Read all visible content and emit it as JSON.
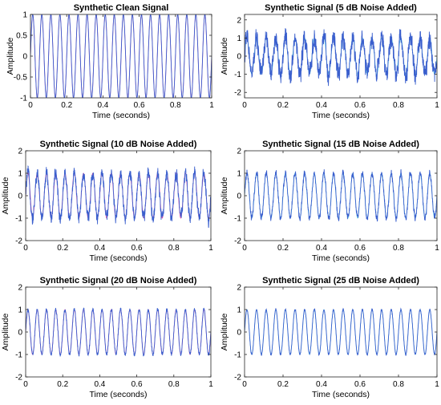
{
  "chart_data": [
    {
      "type": "line",
      "title": "Synthetic Clean Signal",
      "xlabel": "Time (seconds)",
      "ylabel": "Amplitude",
      "xlim": [
        0,
        1
      ],
      "ylim": [
        -1,
        1
      ],
      "xticks": [
        "0",
        "0.2",
        "0.4",
        "0.6",
        "0.8",
        "1"
      ],
      "yticks": [
        "1",
        "0.5",
        "0",
        "-0.5",
        "-1"
      ],
      "frequency_hz": 20,
      "noise_amplitude": 0,
      "colors": {
        "noisy": "#3a5fcd",
        "clean": "#e040a0"
      }
    },
    {
      "type": "line",
      "title": "Synthetic Signal (5 dB Noise Added)",
      "xlabel": "Time (seconds)",
      "ylabel": "Amplitude",
      "xlim": [
        0,
        1
      ],
      "ylim": [
        -2.3,
        2.3
      ],
      "xticks": [
        "0",
        "0.2",
        "0.4",
        "0.6",
        "0.8",
        "1"
      ],
      "yticks": [
        "2",
        "1",
        "0",
        "-1",
        "-2"
      ],
      "frequency_hz": 20,
      "noise_amplitude": 0.42,
      "colors": {
        "noisy": "#3a5fcd",
        "clean": "#5fd3e6"
      }
    },
    {
      "type": "line",
      "title": "Synthetic Signal (10 dB Noise Added)",
      "xlabel": "Time (seconds)",
      "ylabel": "Amplitude",
      "xlim": [
        0,
        1
      ],
      "ylim": [
        -2,
        2
      ],
      "xticks": [
        "0",
        "0.2",
        "0.4",
        "0.6",
        "0.8",
        "1"
      ],
      "yticks": [
        "2",
        "1",
        "0",
        "-1",
        "-2"
      ],
      "frequency_hz": 20,
      "noise_amplitude": 0.22,
      "colors": {
        "noisy": "#3a5fcd",
        "clean": "#e040a0"
      }
    },
    {
      "type": "line",
      "title": "Synthetic Signal (15 dB Noise Added)",
      "xlabel": "Time (seconds)",
      "ylabel": "Amplitude",
      "xlim": [
        0,
        1
      ],
      "ylim": [
        -2,
        2
      ],
      "xticks": [
        "0",
        "0.2",
        "0.4",
        "0.6",
        "0.8",
        "1"
      ],
      "yticks": [
        "2",
        "1",
        "0",
        "-1",
        "-2"
      ],
      "frequency_hz": 20,
      "noise_amplitude": 0.13,
      "colors": {
        "noisy": "#3a5fcd",
        "clean": "#5fd3e6"
      }
    },
    {
      "type": "line",
      "title": "Synthetic Signal (20 dB Noise Added)",
      "xlabel": "Time (seconds)",
      "ylabel": "Amplitude",
      "xlim": [
        0,
        1
      ],
      "ylim": [
        -2,
        2
      ],
      "xticks": [
        "0",
        "0.2",
        "0.4",
        "0.6",
        "0.8",
        "1"
      ],
      "yticks": [
        "2",
        "1",
        "0",
        "-1",
        "-2"
      ],
      "frequency_hz": 20,
      "noise_amplitude": 0.07,
      "colors": {
        "noisy": "#3a5fcd",
        "clean": "#e040a0"
      }
    },
    {
      "type": "line",
      "title": "Synthetic Signal (25 dB Noise Added)",
      "xlabel": "Time (seconds)",
      "ylabel": "Amplitude",
      "xlim": [
        0,
        1
      ],
      "ylim": [
        -2,
        2
      ],
      "xticks": [
        "0",
        "0.2",
        "0.4",
        "0.6",
        "0.8",
        "1"
      ],
      "yticks": [
        "2",
        "1",
        "0",
        "-1",
        "-2"
      ],
      "frequency_hz": 20,
      "noise_amplitude": 0.04,
      "colors": {
        "noisy": "#3a5fcd",
        "clean": "#5fd3e6"
      }
    }
  ]
}
